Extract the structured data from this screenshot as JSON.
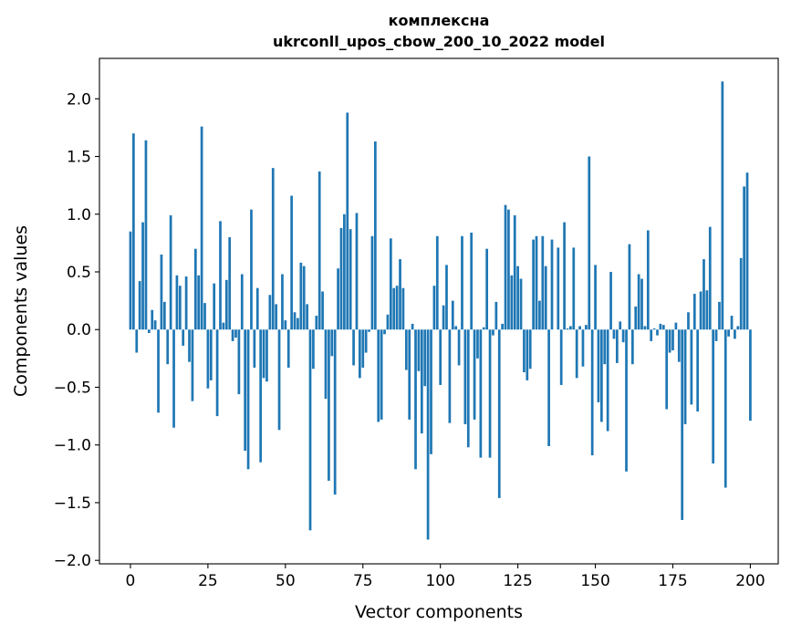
{
  "chart_data": {
    "type": "bar",
    "title_lines": [
      "комплексна",
      "ukrconll_upos_cbow_200_10_2022 model"
    ],
    "xlabel": "Vector components",
    "ylabel": "Components values",
    "xlim": [
      -10,
      209
    ],
    "ylim": [
      -2.03,
      2.35
    ],
    "xticks": [
      0,
      25,
      50,
      75,
      100,
      125,
      150,
      175,
      200
    ],
    "xtick_labels": [
      "0",
      "25",
      "50",
      "75",
      "100",
      "125",
      "150",
      "175",
      "200"
    ],
    "yticks": [
      -2.0,
      -1.5,
      -1.0,
      -0.5,
      0.0,
      0.5,
      1.0,
      1.5,
      2.0
    ],
    "ytick_labels": [
      "−2.0",
      "−1.5",
      "−1.0",
      "−0.5",
      "0.0",
      "0.5",
      "1.0",
      "1.5",
      "2.0"
    ],
    "bar_color": "#1f77b4",
    "grid": false,
    "values": [
      0.85,
      1.7,
      -0.2,
      0.42,
      0.93,
      1.64,
      -0.03,
      0.17,
      0.08,
      -0.72,
      0.65,
      0.24,
      -0.3,
      0.99,
      -0.85,
      0.47,
      0.38,
      -0.14,
      0.46,
      -0.28,
      -0.62,
      0.7,
      0.47,
      1.76,
      0.23,
      -0.51,
      -0.44,
      0.4,
      -0.75,
      0.94,
      0.06,
      0.43,
      0.8,
      -0.1,
      -0.07,
      -0.56,
      0.48,
      -1.05,
      -1.21,
      1.04,
      -0.33,
      0.36,
      -1.15,
      -0.42,
      -0.45,
      0.3,
      1.4,
      0.22,
      -0.87,
      0.48,
      0.08,
      -0.33,
      1.16,
      0.15,
      0.1,
      0.58,
      0.55,
      0.22,
      -1.74,
      -0.34,
      0.12,
      1.37,
      0.33,
      -0.6,
      -1.31,
      -0.23,
      -1.43,
      0.53,
      0.88,
      1.0,
      1.88,
      0.87,
      -0.31,
      1.01,
      -0.42,
      -0.33,
      -0.2,
      -0.02,
      0.81,
      1.63,
      -0.8,
      -0.78,
      -0.04,
      0.13,
      0.79,
      0.36,
      0.38,
      0.61,
      0.36,
      -0.35,
      -0.78,
      0.05,
      -1.21,
      -0.36,
      -0.9,
      -0.49,
      -1.82,
      -1.08,
      0.38,
      0.81,
      -0.48,
      0.21,
      0.56,
      -0.81,
      0.25,
      0.03,
      -0.31,
      0.81,
      -0.82,
      -1.02,
      0.84,
      -0.78,
      -0.25,
      -1.11,
      0.02,
      0.7,
      -1.11,
      -0.05,
      0.24,
      -1.46,
      0.05,
      1.08,
      1.04,
      0.47,
      0.99,
      0.55,
      0.44,
      -0.37,
      -0.44,
      -0.34,
      0.78,
      0.81,
      0.25,
      0.81,
      0.55,
      -1.01,
      0.78,
      0.0,
      0.71,
      -0.48,
      0.93,
      0.01,
      0.03,
      0.71,
      -0.42,
      0.03,
      -0.32,
      0.04,
      1.5,
      -1.09,
      0.56,
      -0.63,
      -0.8,
      -0.3,
      -0.88,
      0.5,
      -0.08,
      -0.29,
      0.07,
      -0.11,
      -1.23,
      0.74,
      -0.3,
      0.2,
      0.48,
      0.44,
      0.03,
      0.86,
      -0.1,
      0.01,
      -0.05,
      0.05,
      0.04,
      -0.69,
      -0.2,
      -0.18,
      0.06,
      -0.28,
      -1.65,
      -0.82,
      0.15,
      -0.65,
      0.31,
      -0.71,
      0.33,
      0.61,
      0.34,
      0.89,
      -1.16,
      -0.1,
      0.24,
      2.15,
      -1.37,
      -0.06,
      0.12,
      -0.08,
      0.03,
      0.62,
      1.24,
      1.36,
      -0.79
    ]
  }
}
